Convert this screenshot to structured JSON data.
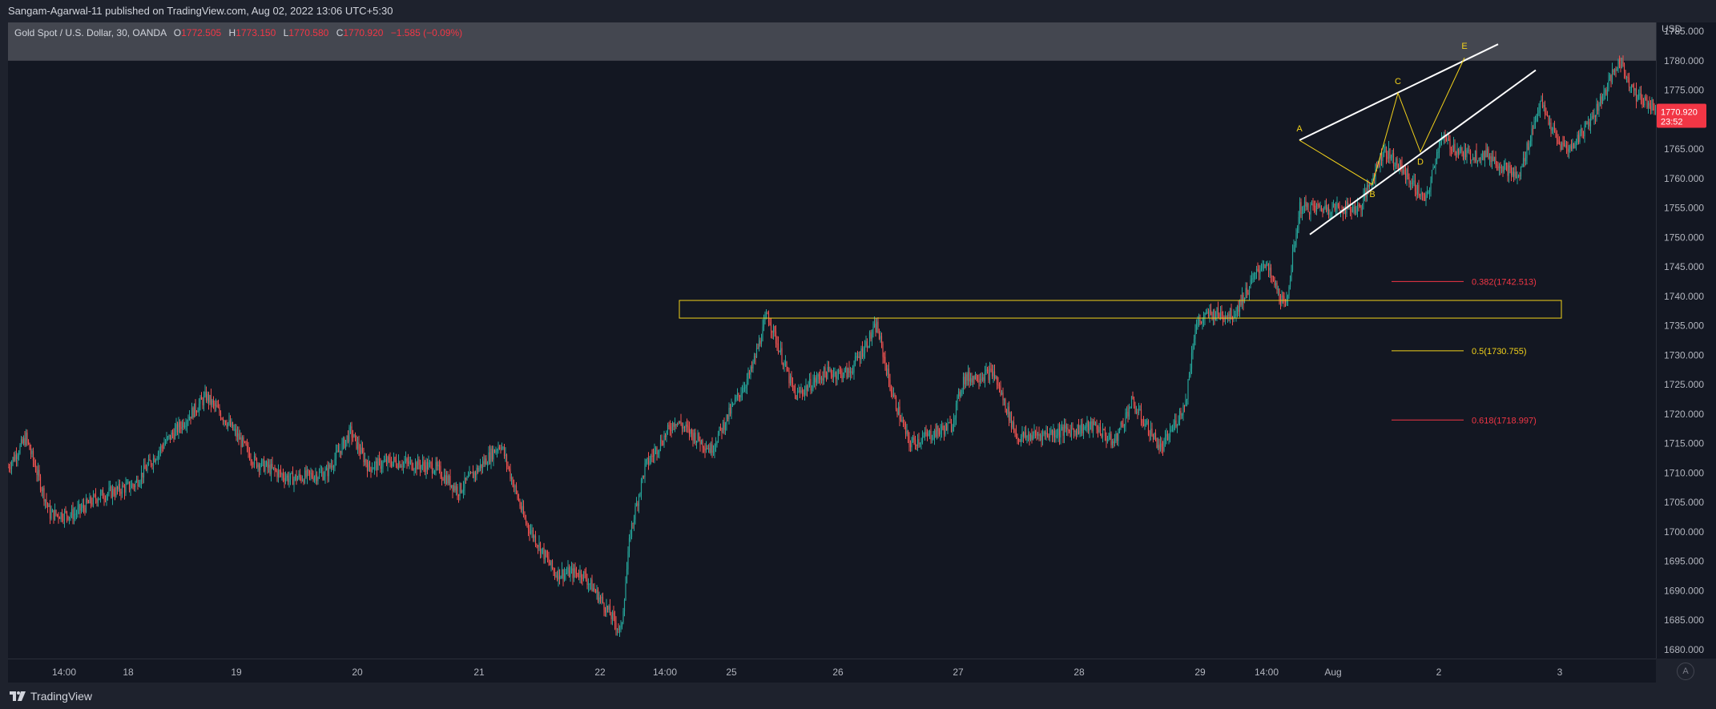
{
  "header": {
    "published": "Sangam-Agarwal-11 published on TradingView.com, Aug 02, 2022 13:06 UTC+5:30"
  },
  "symbol": {
    "name": "Gold Spot / U.S. Dollar, 30, OANDA",
    "open_label": "O",
    "open": "1772.505",
    "high_label": "H",
    "high": "1773.150",
    "low_label": "L",
    "low": "1770.580",
    "close_label": "C",
    "close": "1770.920",
    "change": "−1.585 (−0.09%)"
  },
  "price_axis": {
    "currency": "USD",
    "current_price": "1770.920",
    "countdown": "23:52"
  },
  "footer": {
    "brand": "TradingView",
    "auto_label": "A"
  },
  "colors": {
    "up": "#26a69a",
    "down": "#ef5350",
    "zone": "#f2d11b",
    "fib_382": "#f23645",
    "fib_5": "#f2d11b",
    "fib_618": "#f23645"
  },
  "chart_data": {
    "type": "candlestick",
    "ylim": [
      1678.5,
      1786.5
    ],
    "yticks": [
      1680,
      1685,
      1690,
      1695,
      1700,
      1705,
      1710,
      1715,
      1720,
      1725,
      1730,
      1735,
      1740,
      1745,
      1750,
      1755,
      1760,
      1765,
      1770,
      1775,
      1780,
      1785
    ],
    "ytick_labels": [
      "1680.000",
      "1685.000",
      "1690.000",
      "1695.000",
      "1700.000",
      "1705.000",
      "1710.000",
      "1715.000",
      "1720.000",
      "1725.000",
      "1730.000",
      "1735.000",
      "1740.000",
      "1745.000",
      "1750.000",
      "1755.000",
      "1760.000",
      "1765.000",
      "1770.000",
      "1775.000",
      "1780.000",
      "1785.000"
    ],
    "xlabels": [
      "14:00",
      "18",
      "19",
      "20",
      "21",
      "22",
      "14:00",
      "25",
      "26",
      "27",
      "28",
      "29",
      "14:00",
      "Aug",
      "2",
      "3"
    ],
    "price_path": [
      [
        0,
        1711
      ],
      [
        15,
        1716
      ],
      [
        35,
        1703
      ],
      [
        55,
        1703
      ],
      [
        75,
        1706
      ],
      [
        105,
        1708
      ],
      [
        130,
        1715
      ],
      [
        165,
        1723
      ],
      [
        185,
        1718
      ],
      [
        205,
        1712
      ],
      [
        235,
        1709
      ],
      [
        265,
        1710
      ],
      [
        285,
        1717
      ],
      [
        300,
        1711
      ],
      [
        320,
        1712
      ],
      [
        355,
        1711
      ],
      [
        375,
        1707
      ],
      [
        410,
        1715
      ],
      [
        430,
        1702
      ],
      [
        455,
        1693
      ],
      [
        478,
        1693
      ],
      [
        495,
        1688
      ],
      [
        510,
        1683
      ],
      [
        518,
        1700
      ],
      [
        530,
        1711
      ],
      [
        555,
        1719
      ],
      [
        585,
        1714
      ],
      [
        605,
        1722
      ],
      [
        618,
        1727
      ],
      [
        632,
        1737
      ],
      [
        655,
        1723
      ],
      [
        680,
        1727
      ],
      [
        700,
        1727
      ],
      [
        723,
        1735
      ],
      [
        735,
        1724
      ],
      [
        750,
        1715
      ],
      [
        785,
        1718
      ],
      [
        795,
        1726
      ],
      [
        820,
        1727
      ],
      [
        840,
        1716
      ],
      [
        875,
        1717
      ],
      [
        905,
        1718
      ],
      [
        920,
        1715
      ],
      [
        935,
        1722
      ],
      [
        960,
        1714
      ],
      [
        980,
        1722
      ],
      [
        988,
        1735
      ],
      [
        1000,
        1737
      ],
      [
        1020,
        1737
      ],
      [
        1045,
        1746
      ],
      [
        1063,
        1738
      ],
      [
        1075,
        1755
      ],
      [
        1100,
        1755
      ],
      [
        1125,
        1755
      ],
      [
        1145,
        1765
      ],
      [
        1162,
        1761
      ],
      [
        1180,
        1756
      ],
      [
        1192,
        1767
      ],
      [
        1212,
        1764
      ],
      [
        1232,
        1764
      ],
      [
        1257,
        1760
      ],
      [
        1275,
        1773
      ],
      [
        1290,
        1766
      ],
      [
        1300,
        1765
      ],
      [
        1320,
        1771
      ],
      [
        1341,
        1780
      ],
      [
        1355,
        1774
      ],
      [
        1372,
        1772
      ],
      [
        1375,
        1771
      ]
    ],
    "supply_zone": {
      "from": 1736.3,
      "to": 1739.3,
      "label": ""
    },
    "fibonacci": [
      {
        "ratio": "0.382",
        "price": 1742.513,
        "label": "0.382(1742.513)"
      },
      {
        "ratio": "0.5",
        "price": 1730.755,
        "label": "0.5(1730.755)"
      },
      {
        "ratio": "0.618",
        "price": 1718.997,
        "label": "0.618(1718.997)"
      }
    ],
    "wave_points": [
      {
        "label": "A",
        "price": 1766.5
      },
      {
        "label": "B",
        "price": 1759.0
      },
      {
        "label": "C",
        "price": 1774.5
      },
      {
        "label": "D",
        "price": 1764.5
      },
      {
        "label": "E",
        "price": 1780.5
      }
    ],
    "highlight_band_above": 1780.0
  }
}
